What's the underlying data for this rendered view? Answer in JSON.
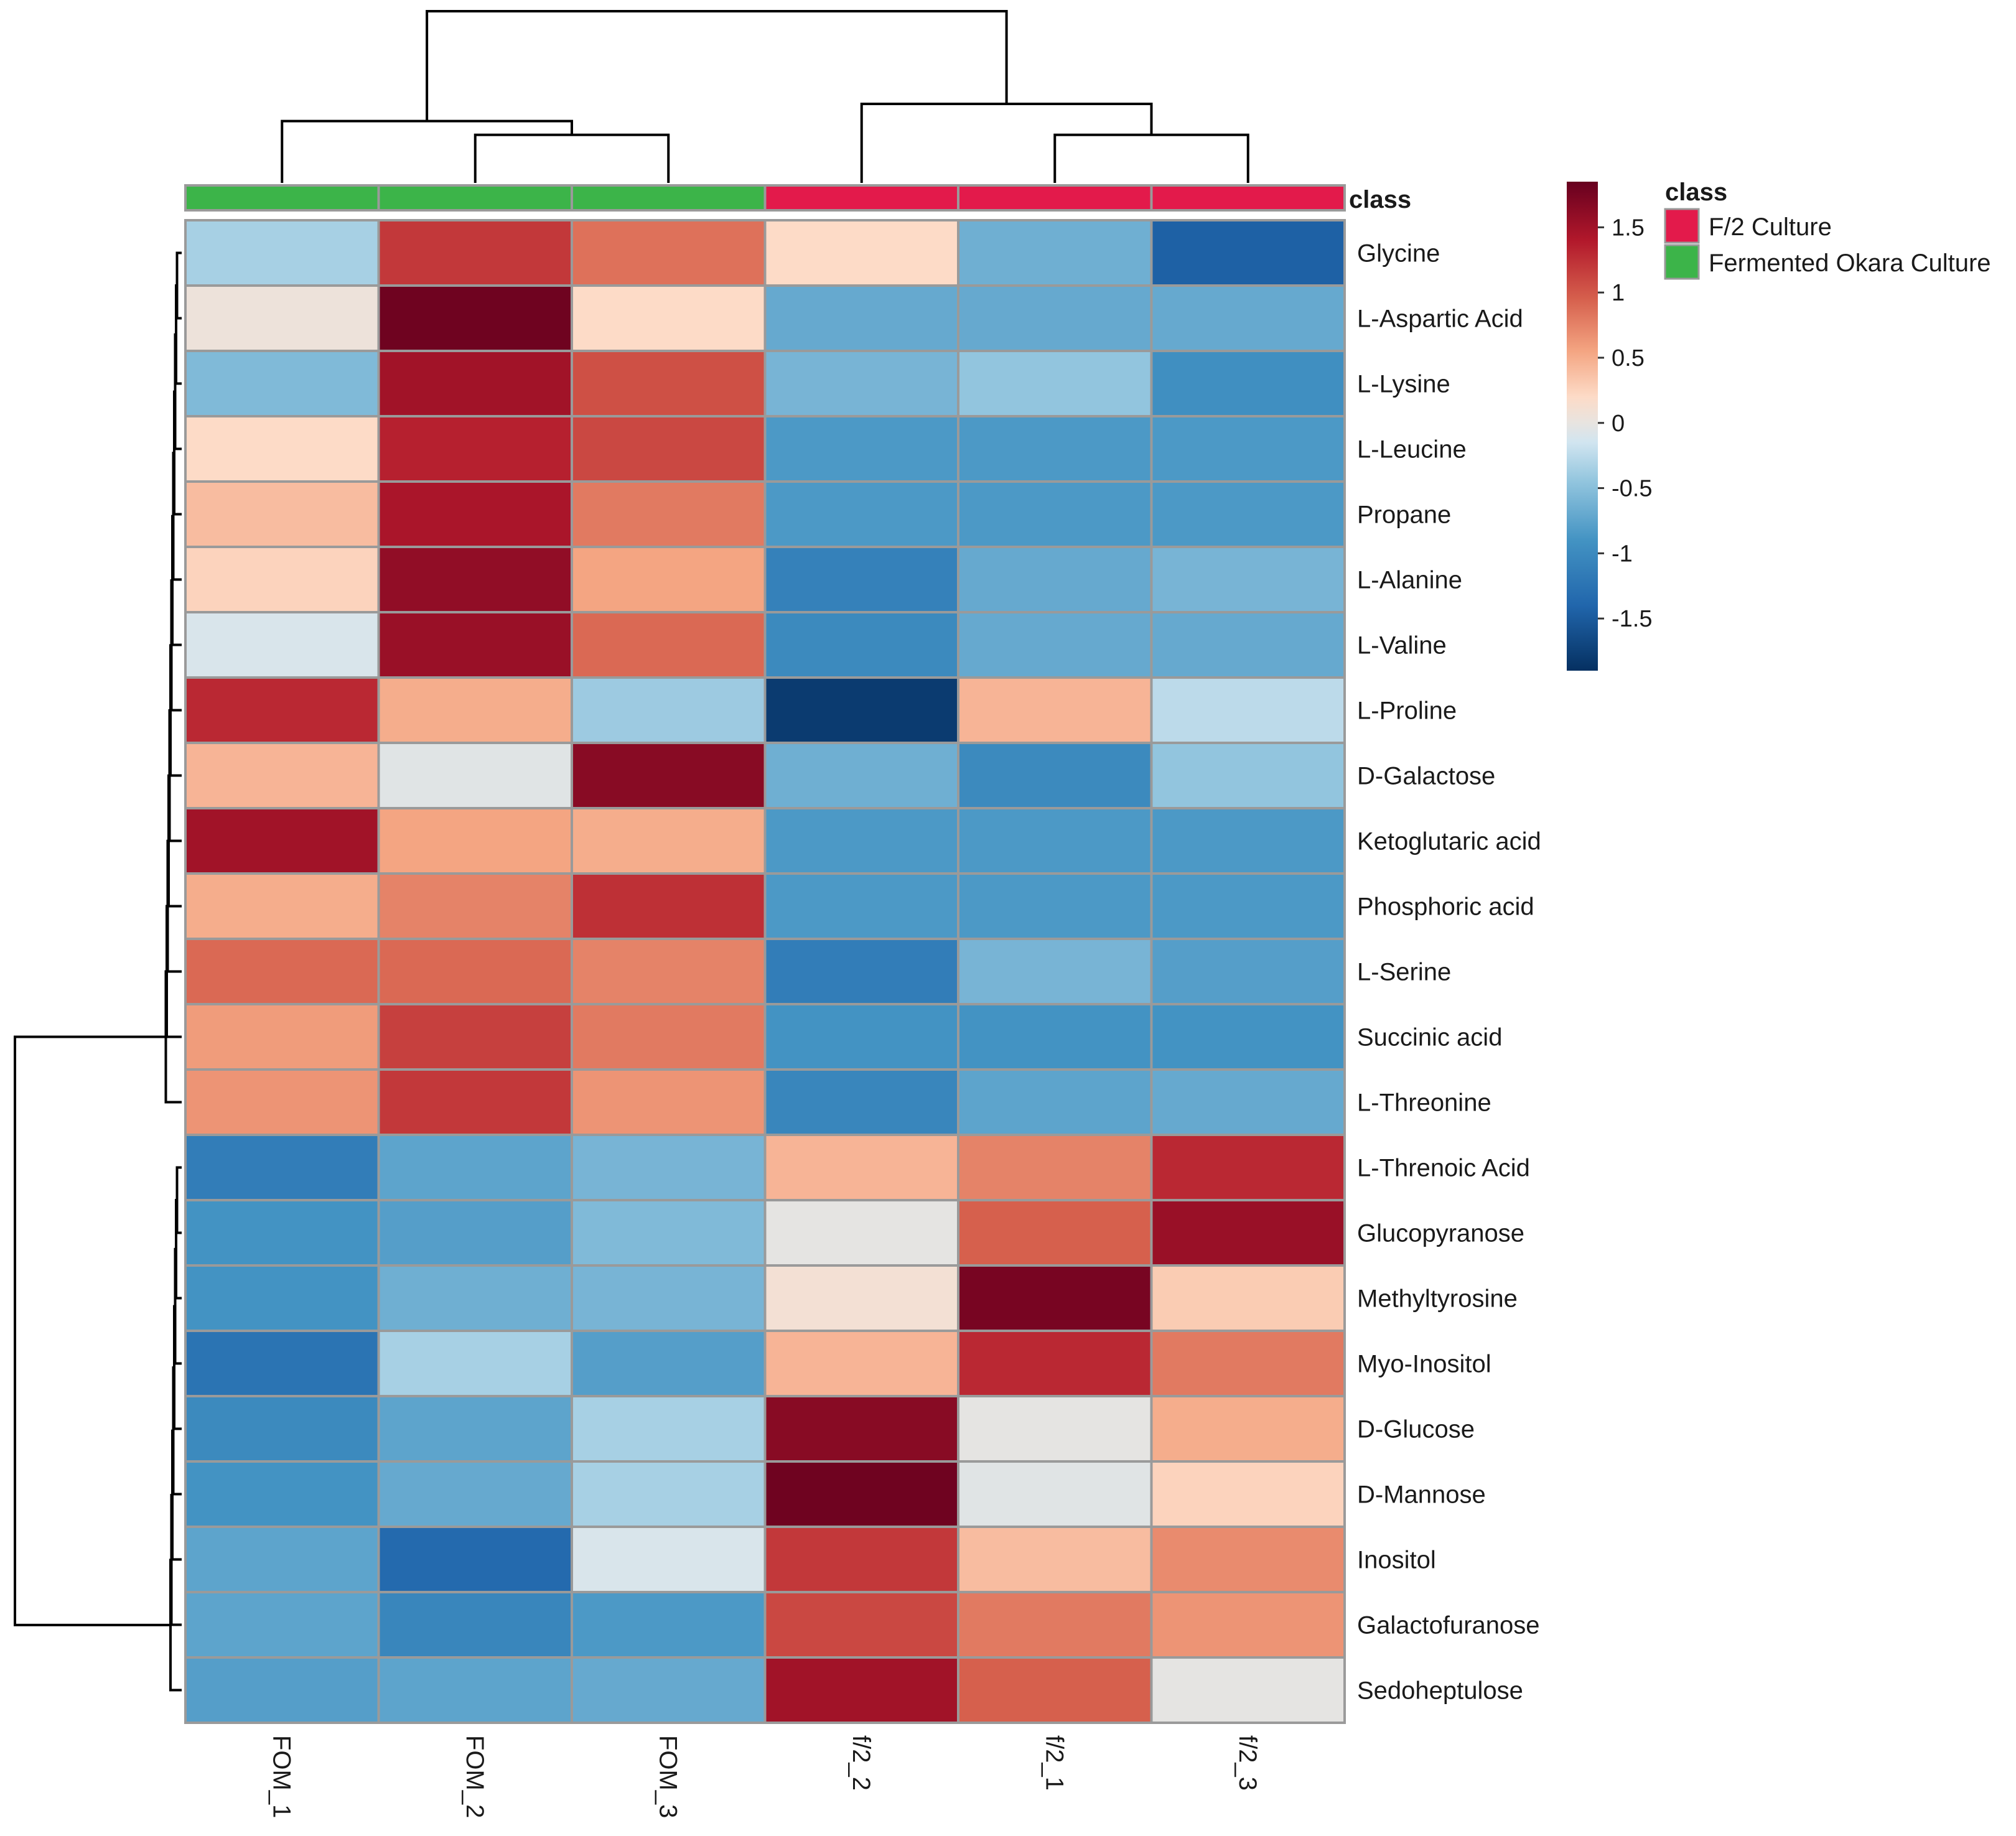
{
  "chart_data": {
    "type": "heatmap",
    "title": "",
    "columns": [
      "FOM_1",
      "FOM_2",
      "FOM_3",
      "f/2_2",
      "f/2_1",
      "f/2_3"
    ],
    "column_classes": [
      "Fermented Okara Culture",
      "Fermented Okara Culture",
      "Fermented Okara Culture",
      "F/2 Culture",
      "F/2 Culture",
      "F/2 Culture"
    ],
    "class_annotation_label": "class",
    "rows": [
      "Glycine",
      "L-Aspartic Acid",
      "L-Lysine",
      "L-Leucine",
      "Propane",
      "L-Alanine",
      "L-Valine",
      "L-Proline",
      "D-Galactose",
      "Ketoglutaric acid",
      "Phosphoric acid",
      "L-Serine",
      "Succinic acid",
      "L-Threonine",
      "L-Threnoic Acid",
      "Glucopyranose",
      "Methyltyrosine",
      "Myo-Inositol",
      "D-Glucose",
      "D-Mannose",
      "Inositol",
      "Galactofuranose",
      "Sedoheptulose"
    ],
    "values": [
      [
        -0.35,
        1.2,
        0.85,
        0.2,
        -0.65,
        -1.45
      ],
      [
        0.05,
        1.8,
        0.2,
        -0.7,
        -0.7,
        -0.7
      ],
      [
        -0.55,
        1.5,
        1.05,
        -0.6,
        -0.45,
        -0.95
      ],
      [
        0.2,
        1.35,
        1.1,
        -0.85,
        -0.85,
        -0.85
      ],
      [
        0.4,
        1.45,
        0.8,
        -0.85,
        -0.85,
        -0.85
      ],
      [
        0.25,
        1.6,
        0.55,
        -1.1,
        -0.7,
        -0.6
      ],
      [
        -0.1,
        1.55,
        0.9,
        -1.0,
        -0.7,
        -0.7
      ],
      [
        1.3,
        0.5,
        -0.4,
        -1.8,
        0.45,
        -0.25
      ],
      [
        0.45,
        -0.05,
        1.65,
        -0.65,
        -1.0,
        -0.45
      ],
      [
        1.5,
        0.55,
        0.5,
        -0.85,
        -0.85,
        -0.85
      ],
      [
        0.5,
        0.75,
        1.25,
        -0.85,
        -0.85,
        -0.85
      ],
      [
        0.9,
        0.9,
        0.75,
        -1.15,
        -0.6,
        -0.8
      ],
      [
        0.6,
        1.15,
        0.8,
        -0.9,
        -0.9,
        -0.9
      ],
      [
        0.65,
        1.2,
        0.65,
        -1.05,
        -0.75,
        -0.7
      ],
      [
        -1.15,
        -0.75,
        -0.6,
        0.45,
        0.75,
        1.3
      ],
      [
        -0.9,
        -0.8,
        -0.55,
        -0.02,
        0.95,
        1.55
      ],
      [
        -0.9,
        -0.65,
        -0.6,
        0.1,
        1.75,
        0.3
      ],
      [
        -1.25,
        -0.35,
        -0.8,
        0.45,
        1.3,
        0.8
      ],
      [
        -1.0,
        -0.75,
        -0.35,
        1.65,
        -0.02,
        0.5
      ],
      [
        -0.9,
        -0.7,
        -0.35,
        1.8,
        -0.05,
        0.25
      ],
      [
        -0.75,
        -1.35,
        -0.1,
        1.2,
        0.4,
        0.7
      ],
      [
        -0.75,
        -1.05,
        -0.85,
        1.1,
        0.8,
        0.65
      ],
      [
        -0.8,
        -0.75,
        -0.7,
        1.5,
        0.95,
        -0.02
      ]
    ],
    "color_scale": {
      "min": -1.9,
      "max": 1.85,
      "ticks": [
        "1.5",
        "1",
        "0.5",
        "0",
        "-0.5",
        "-1",
        "-1.5"
      ],
      "tick_values": [
        1.5,
        1,
        0.5,
        0,
        -0.5,
        -1,
        -1.5
      ],
      "stops": [
        {
          "value": -1.9,
          "color": "#053061"
        },
        {
          "value": -1.4,
          "color": "#2166ac"
        },
        {
          "value": -0.9,
          "color": "#4393c3"
        },
        {
          "value": -0.45,
          "color": "#92c5de"
        },
        {
          "value": -0.15,
          "color": "#d1e5f0"
        },
        {
          "value": 0.0,
          "color": "#e8e4e0"
        },
        {
          "value": 0.2,
          "color": "#fddbc7"
        },
        {
          "value": 0.55,
          "color": "#f4a582"
        },
        {
          "value": 0.95,
          "color": "#d6604d"
        },
        {
          "value": 1.4,
          "color": "#b2182b"
        },
        {
          "value": 1.85,
          "color": "#67001f"
        }
      ]
    },
    "legend": {
      "title": "class",
      "items": [
        {
          "label": "F/2 Culture",
          "color": "#e31a4b"
        },
        {
          "label": "Fermented Okara Culture",
          "color": "#3cb449"
        }
      ]
    },
    "column_dendrogram": {
      "leaf_order": [
        "FOM_1",
        "FOM_2",
        "FOM_3",
        "f/2_2",
        "f/2_1",
        "f/2_3"
      ],
      "merges": [
        {
          "left": "FOM_2",
          "right": "FOM_3",
          "height": 0.28
        },
        {
          "left": "f/2_1",
          "right": "f/2_3",
          "height": 0.28
        },
        {
          "left": "FOM_1",
          "right": "FOM_2+FOM_3",
          "height": 0.36
        },
        {
          "left": "f/2_2",
          "right": "f/2_1+f/2_3",
          "height": 0.46
        },
        {
          "left": "FOM group",
          "right": "f/2 group",
          "height": 1.0
        }
      ]
    },
    "row_dendrogram": {
      "clusters": [
        {
          "name": "upper cluster",
          "rows": [
            "Glycine",
            "L-Aspartic Acid",
            "L-Lysine",
            "L-Leucine",
            "Propane",
            "L-Alanine",
            "L-Valine",
            "L-Proline",
            "D-Galactose",
            "Ketoglutaric acid",
            "Phosphoric acid",
            "L-Serine",
            "Succinic acid",
            "L-Threonine"
          ]
        },
        {
          "name": "lower cluster",
          "rows": [
            "L-Threnoic Acid",
            "Glucopyranose",
            "Methyltyrosine",
            "Myo-Inositol",
            "D-Glucose",
            "D-Mannose",
            "Inositol",
            "Galactofuranose",
            "Sedoheptulose"
          ]
        }
      ]
    }
  }
}
